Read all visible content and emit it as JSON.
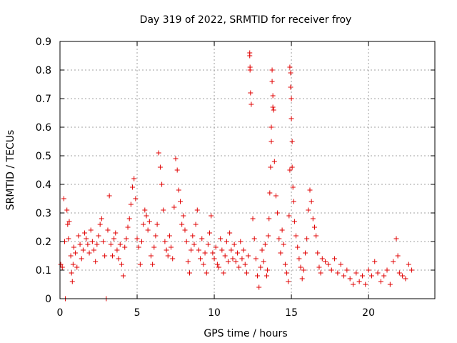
{
  "chart_data": {
    "type": "scatter",
    "title": "Day 319 of 2022, SRMTID for receiver froy",
    "xlabel": "GPS time / hours",
    "ylabel": "SRMTID / TECUs",
    "xlim": [
      0,
      24.3
    ],
    "ylim": [
      0,
      0.9
    ],
    "x_ticks": [
      0,
      5,
      10,
      15,
      20
    ],
    "x_tick_labels": [
      "0",
      "5",
      "10",
      "15",
      "20"
    ],
    "y_ticks": [
      0,
      0.1,
      0.2,
      0.3,
      0.4,
      0.5,
      0.6,
      0.7,
      0.8,
      0.9
    ],
    "y_tick_labels": [
      "0",
      "0.1",
      "0.2",
      "0.3",
      "0.4",
      "0.5",
      "0.6",
      "0.7",
      "0.8",
      "0.9"
    ],
    "grid": true,
    "marker": "plus",
    "marker_color": "#e00000",
    "series": [
      {
        "name": "SRMTID",
        "x": [
          0.05,
          0.15,
          0.25,
          0.3,
          0.35,
          0.45,
          0.5,
          0.55,
          0.6,
          0.7,
          0.75,
          0.8,
          0.85,
          0.9,
          1.0,
          1.1,
          1.2,
          1.3,
          1.4,
          1.5,
          1.6,
          1.7,
          1.8,
          1.9,
          2.0,
          2.1,
          2.2,
          2.3,
          2.4,
          2.5,
          2.6,
          2.7,
          2.8,
          2.9,
          3.0,
          3.1,
          3.2,
          3.3,
          3.4,
          3.5,
          3.6,
          3.7,
          3.8,
          3.9,
          4.0,
          4.1,
          4.2,
          4.3,
          4.4,
          4.5,
          4.6,
          4.7,
          4.8,
          4.9,
          5.0,
          5.1,
          5.2,
          5.3,
          5.4,
          5.5,
          5.6,
          5.7,
          5.8,
          5.9,
          6.0,
          6.1,
          6.2,
          6.3,
          6.4,
          6.5,
          6.6,
          6.7,
          6.8,
          6.9,
          7.0,
          7.1,
          7.2,
          7.3,
          7.4,
          7.5,
          7.6,
          7.7,
          7.8,
          7.9,
          8.0,
          8.1,
          8.2,
          8.3,
          8.4,
          8.5,
          8.6,
          8.7,
          8.8,
          8.9,
          9.0,
          9.1,
          9.2,
          9.3,
          9.4,
          9.5,
          9.6,
          9.7,
          9.8,
          9.9,
          10.0,
          10.1,
          10.2,
          10.3,
          10.4,
          10.5,
          10.6,
          10.7,
          10.8,
          10.9,
          11.0,
          11.1,
          11.2,
          11.3,
          11.4,
          11.5,
          11.6,
          11.7,
          11.8,
          11.9,
          12.0,
          12.1,
          12.2,
          12.3,
          12.3,
          12.32,
          12.32,
          12.35,
          12.4,
          12.5,
          12.6,
          12.7,
          12.8,
          12.9,
          13.0,
          13.1,
          13.2,
          13.3,
          13.4,
          13.45,
          13.5,
          13.55,
          13.6,
          13.65,
          13.7,
          13.7,
          13.75,
          13.75,
          13.8,
          13.8,
          13.85,
          13.9,
          14.0,
          14.1,
          14.2,
          14.3,
          14.4,
          14.5,
          14.6,
          14.7,
          14.8,
          14.85,
          14.9,
          14.9,
          14.95,
          14.95,
          15.0,
          15.0,
          15.05,
          15.05,
          15.1,
          15.15,
          15.2,
          15.3,
          15.4,
          15.5,
          15.6,
          15.7,
          15.8,
          15.9,
          16.0,
          16.1,
          16.2,
          16.3,
          16.4,
          16.5,
          16.6,
          16.7,
          16.8,
          16.9,
          17.0,
          17.2,
          17.4,
          17.6,
          17.8,
          18.0,
          18.2,
          18.4,
          18.6,
          18.8,
          19.0,
          19.2,
          19.4,
          19.6,
          19.8,
          20.0,
          20.2,
          20.4,
          20.6,
          20.8,
          21.0,
          21.2,
          21.4,
          21.6,
          21.8,
          21.9,
          22.0,
          22.2,
          22.4,
          22.6,
          22.8
        ],
        "y": [
          0.12,
          0.11,
          0.35,
          0.2,
          0.0,
          0.31,
          0.26,
          0.21,
          0.27,
          0.15,
          0.09,
          0.06,
          0.12,
          0.18,
          0.16,
          0.11,
          0.22,
          0.19,
          0.14,
          0.17,
          0.23,
          0.21,
          0.19,
          0.16,
          0.24,
          0.2,
          0.17,
          0.13,
          0.19,
          0.22,
          0.26,
          0.28,
          0.2,
          0.15,
          0.0,
          0.24,
          0.36,
          0.19,
          0.15,
          0.21,
          0.23,
          0.17,
          0.14,
          0.19,
          0.12,
          0.08,
          0.18,
          0.21,
          0.25,
          0.28,
          0.33,
          0.39,
          0.42,
          0.35,
          0.21,
          0.18,
          0.12,
          0.2,
          0.26,
          0.31,
          0.29,
          0.24,
          0.27,
          0.15,
          0.12,
          0.18,
          0.22,
          0.26,
          0.51,
          0.46,
          0.4,
          0.31,
          0.2,
          0.17,
          0.15,
          0.22,
          0.18,
          0.14,
          0.32,
          0.49,
          0.45,
          0.38,
          0.34,
          0.26,
          0.29,
          0.24,
          0.2,
          0.13,
          0.09,
          0.17,
          0.22,
          0.19,
          0.26,
          0.31,
          0.17,
          0.14,
          0.21,
          0.12,
          0.16,
          0.09,
          0.19,
          0.23,
          0.29,
          0.16,
          0.14,
          0.18,
          0.12,
          0.11,
          0.21,
          0.17,
          0.09,
          0.15,
          0.2,
          0.13,
          0.23,
          0.17,
          0.14,
          0.19,
          0.13,
          0.16,
          0.11,
          0.2,
          0.14,
          0.17,
          0.12,
          0.09,
          0.15,
          0.86,
          0.85,
          0.81,
          0.8,
          0.72,
          0.68,
          0.28,
          0.21,
          0.14,
          0.08,
          0.04,
          0.11,
          0.17,
          0.13,
          0.19,
          0.08,
          0.1,
          0.22,
          0.28,
          0.37,
          0.46,
          0.55,
          0.6,
          0.8,
          0.76,
          0.71,
          0.67,
          0.66,
          0.48,
          0.36,
          0.3,
          0.21,
          0.16,
          0.24,
          0.19,
          0.12,
          0.09,
          0.06,
          0.29,
          0.45,
          0.81,
          0.79,
          0.74,
          0.7,
          0.63,
          0.55,
          0.46,
          0.39,
          0.34,
          0.27,
          0.22,
          0.18,
          0.14,
          0.11,
          0.07,
          0.1,
          0.16,
          0.21,
          0.31,
          0.38,
          0.34,
          0.28,
          0.25,
          0.22,
          0.16,
          0.11,
          0.09,
          0.14,
          0.13,
          0.12,
          0.1,
          0.14,
          0.09,
          0.12,
          0.08,
          0.1,
          0.07,
          0.05,
          0.09,
          0.06,
          0.08,
          0.05,
          0.1,
          0.08,
          0.13,
          0.09,
          0.06,
          0.08,
          0.1,
          0.05,
          0.13,
          0.21,
          0.15,
          0.09,
          0.08,
          0.07,
          0.12,
          0.1
        ]
      }
    ]
  }
}
